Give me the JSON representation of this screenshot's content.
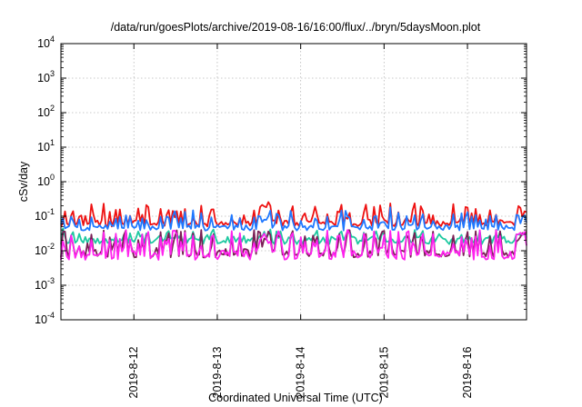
{
  "chart_data": {
    "type": "line",
    "title": "/data/run/goesPlots/archive/2019-08-16/16:00/flux/../bryn/5daysMoon.plot",
    "xlabel": "Coordinated Universal Time (UTC)",
    "ylabel": "cSv/day",
    "yscale": "log",
    "ylim": [
      0.0001,
      10000
    ],
    "yticks": [
      {
        "value": 0.0001,
        "base": "10",
        "exp": "-4"
      },
      {
        "value": 0.001,
        "base": "10",
        "exp": "-3"
      },
      {
        "value": 0.01,
        "base": "10",
        "exp": "-2"
      },
      {
        "value": 0.1,
        "base": "10",
        "exp": "-1"
      },
      {
        "value": 1,
        "base": "10",
        "exp": "0"
      },
      {
        "value": 10,
        "base": "10",
        "exp": "1"
      },
      {
        "value": 100,
        "base": "10",
        "exp": "2"
      },
      {
        "value": 1000,
        "base": "10",
        "exp": "3"
      },
      {
        "value": 10000,
        "base": "10",
        "exp": "4"
      }
    ],
    "xlim": [
      "2019-08-11 03:00",
      "2019-08-16 17:00"
    ],
    "xticks": [
      "2019-8-12",
      "2019-8-13",
      "2019-8-14",
      "2019-8-15",
      "2019-8-16"
    ],
    "grid": true,
    "legend": "none",
    "series": [
      {
        "color": "#ee1111",
        "base": 0.062,
        "dip": 0.042,
        "noise": 0.18,
        "seed": 11
      },
      {
        "color": "#1f78ff",
        "base": 0.046,
        "dip": 0.03,
        "noise": 0.16,
        "seed": 23
      },
      {
        "color": "#1ec8a0",
        "base": 0.02,
        "dip": 0.013,
        "noise": 0.22,
        "seed": 37
      },
      {
        "color": "#7a1f55",
        "base": 0.0085,
        "dip": 0.034,
        "noise": 0.25,
        "seed": 41
      },
      {
        "color": "#ff22ee",
        "base": 0.0075,
        "dip": 0.04,
        "noise": 0.28,
        "seed": 53
      }
    ]
  }
}
